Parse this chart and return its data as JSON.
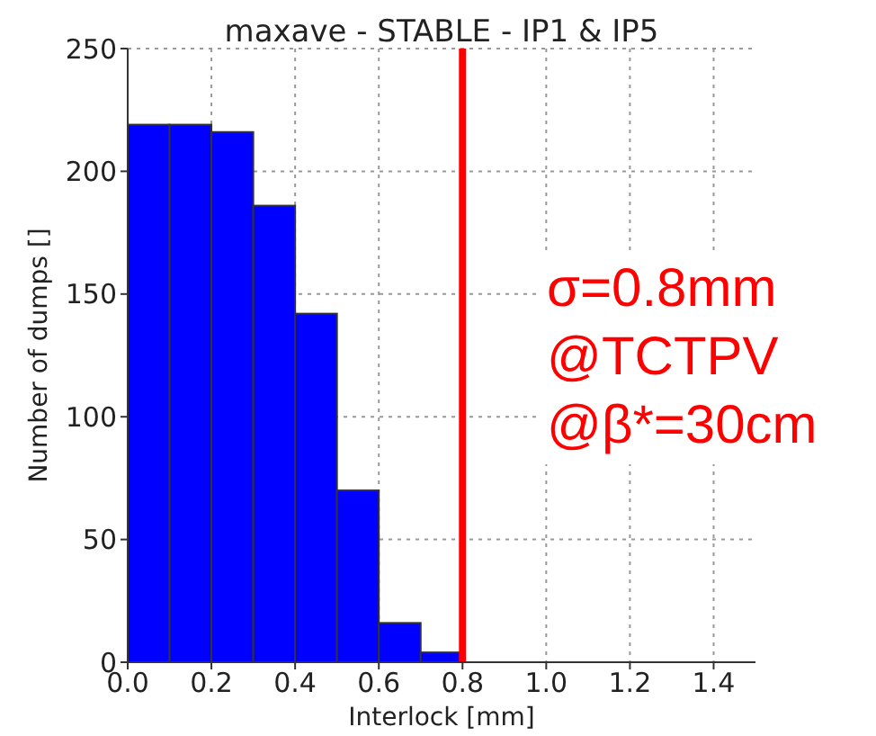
{
  "chart_data": {
    "type": "histogram",
    "title": "maxave - STABLE - IP1 & IP5",
    "xlabel": "Interlock [mm]",
    "ylabel": "Number of dumps []",
    "bins": [
      0,
      0.1,
      0.2,
      0.3,
      0.4,
      0.5,
      0.6,
      0.7,
      0.8
    ],
    "values": [
      219,
      219,
      216,
      186,
      142,
      70,
      16,
      4
    ],
    "color": "#0000ff",
    "xlim": [
      0,
      1.5
    ],
    "xticks": [
      {
        "value": 0,
        "label": "0.0"
      },
      {
        "value": 0.2,
        "label": "0.2"
      },
      {
        "value": 0.4,
        "label": "0.4"
      },
      {
        "value": 0.6,
        "label": "0.6"
      },
      {
        "value": 0.8,
        "label": "0.8"
      },
      {
        "value": 1,
        "label": "1.0"
      },
      {
        "value": 1.2,
        "label": "1.2"
      },
      {
        "value": 1.4,
        "label": "1.4"
      }
    ],
    "ylim": [
      0,
      250
    ],
    "yticks": [
      0,
      50,
      100,
      150,
      200,
      250
    ],
    "grid": true,
    "ref_lines": [
      {
        "axis": "x",
        "value": 0.8,
        "color": "#ff0000"
      }
    ],
    "annotations": [
      "σ=0.8mm",
      "@TCTPV",
      "@β*=30cm"
    ]
  }
}
